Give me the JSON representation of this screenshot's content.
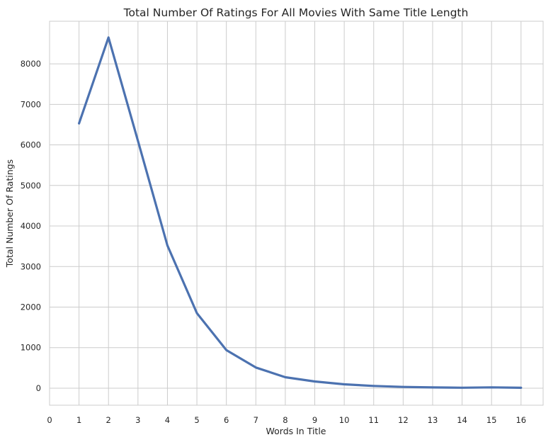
{
  "chart_data": {
    "type": "line",
    "title": "Total Number Of Ratings For All Movies With Same Title Length",
    "xlabel": "Words In Title",
    "ylabel": "Total Number Of Ratings",
    "xlim": [
      0,
      16.75
    ],
    "ylim": [
      -420,
      9050
    ],
    "x_ticks": [
      0,
      1,
      2,
      3,
      4,
      5,
      6,
      7,
      8,
      9,
      10,
      11,
      12,
      13,
      14,
      15,
      16
    ],
    "y_ticks": [
      0,
      1000,
      2000,
      3000,
      4000,
      5000,
      6000,
      7000,
      8000
    ],
    "grid": true,
    "series": [
      {
        "color": "#4c72b0",
        "x": [
          1,
          2,
          3,
          4,
          5,
          6,
          7,
          8,
          9,
          10,
          11,
          12,
          13,
          14,
          15,
          16
        ],
        "values": [
          6530,
          8650,
          6100,
          3520,
          1850,
          940,
          510,
          270,
          165,
          95,
          55,
          30,
          18,
          12,
          20,
          10
        ]
      }
    ]
  }
}
